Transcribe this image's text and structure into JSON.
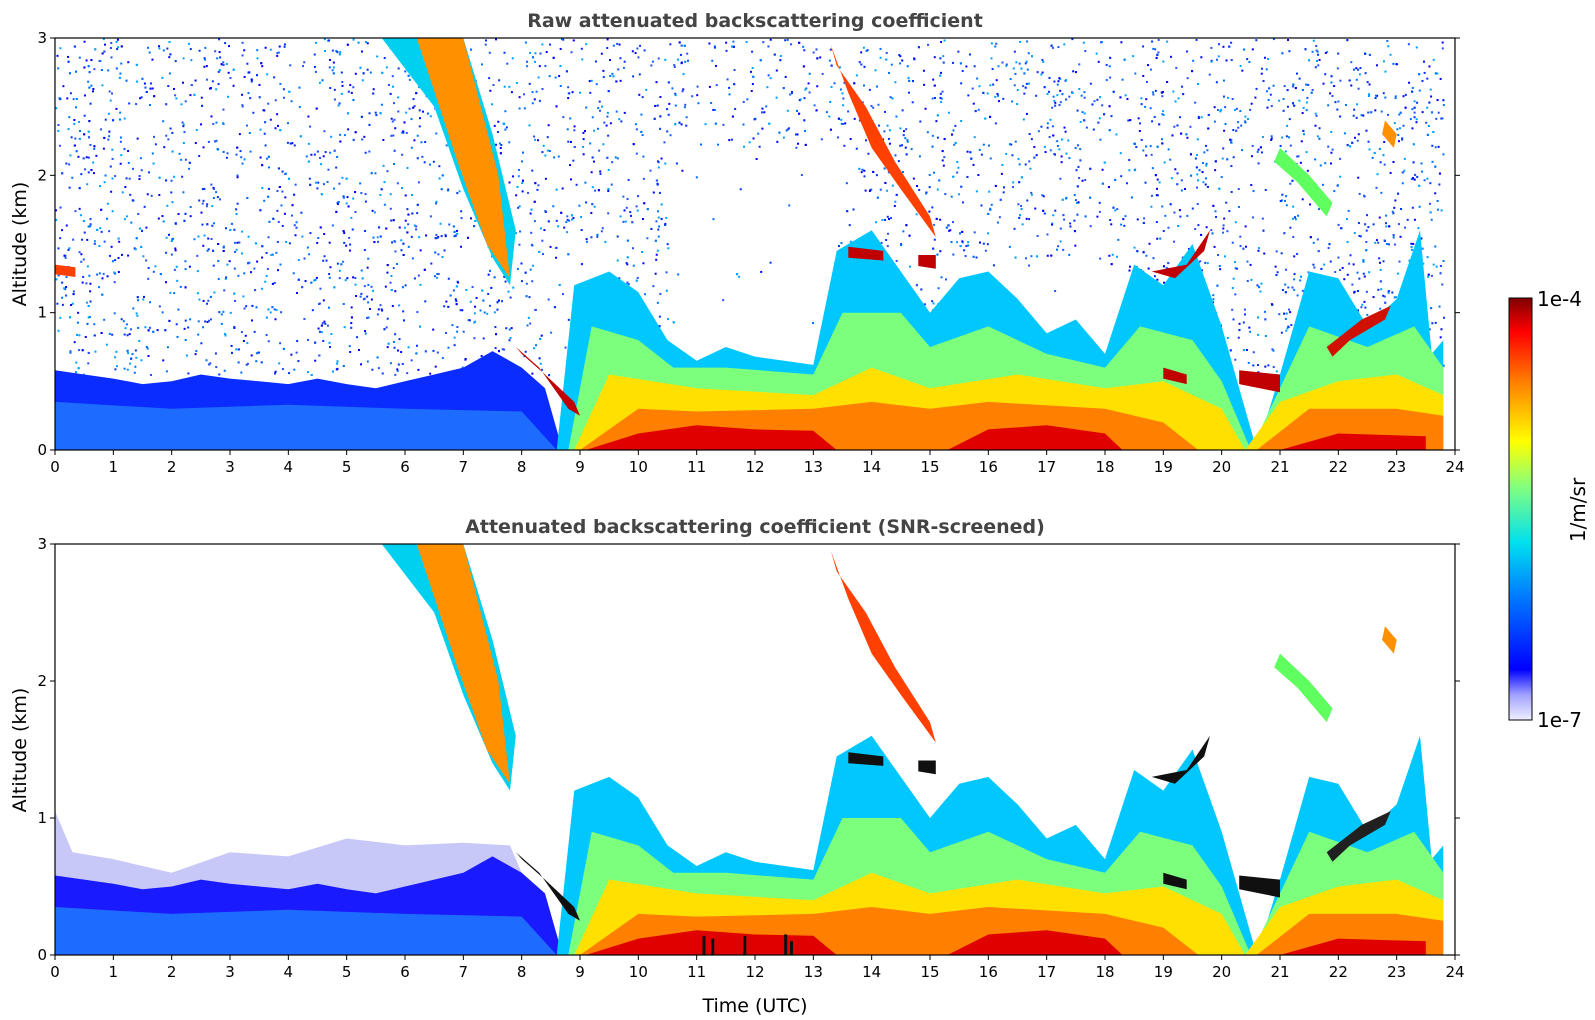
{
  "chart_data": [
    {
      "type": "heatmap",
      "title": "Raw attenuated backscattering coefficient",
      "xlabel": "",
      "ylabel": "Altitude (km)",
      "xlim": [
        0,
        24
      ],
      "ylim": [
        0,
        3
      ],
      "x_ticks": [
        "0",
        "1",
        "2",
        "3",
        "4",
        "5",
        "6",
        "7",
        "8",
        "9",
        "10",
        "11",
        "12",
        "13",
        "14",
        "15",
        "16",
        "17",
        "18",
        "19",
        "20",
        "21",
        "22",
        "23",
        "24"
      ],
      "y_ticks": [
        "0",
        "1",
        "2",
        "3"
      ],
      "grid": false
    },
    {
      "type": "heatmap",
      "title": "Attenuated backscattering coefficient (SNR-screened)",
      "xlabel": "Time (UTC)",
      "ylabel": "Altitude (km)",
      "xlim": [
        0,
        24
      ],
      "ylim": [
        0,
        3
      ],
      "x_ticks": [
        "0",
        "1",
        "2",
        "3",
        "4",
        "5",
        "6",
        "7",
        "8",
        "9",
        "10",
        "11",
        "12",
        "13",
        "14",
        "15",
        "16",
        "17",
        "18",
        "19",
        "20",
        "21",
        "22",
        "23",
        "24"
      ],
      "y_ticks": [
        "0",
        "1",
        "2",
        "3"
      ],
      "grid": false
    }
  ],
  "colorbar": {
    "max_label": "1e-4",
    "min_label": "1e-7",
    "unit_label": "1/m/sr",
    "colormap": "jet",
    "scale": "log"
  },
  "colors": {
    "title": "#444444",
    "low": "#0000ff",
    "high": "#800000"
  }
}
